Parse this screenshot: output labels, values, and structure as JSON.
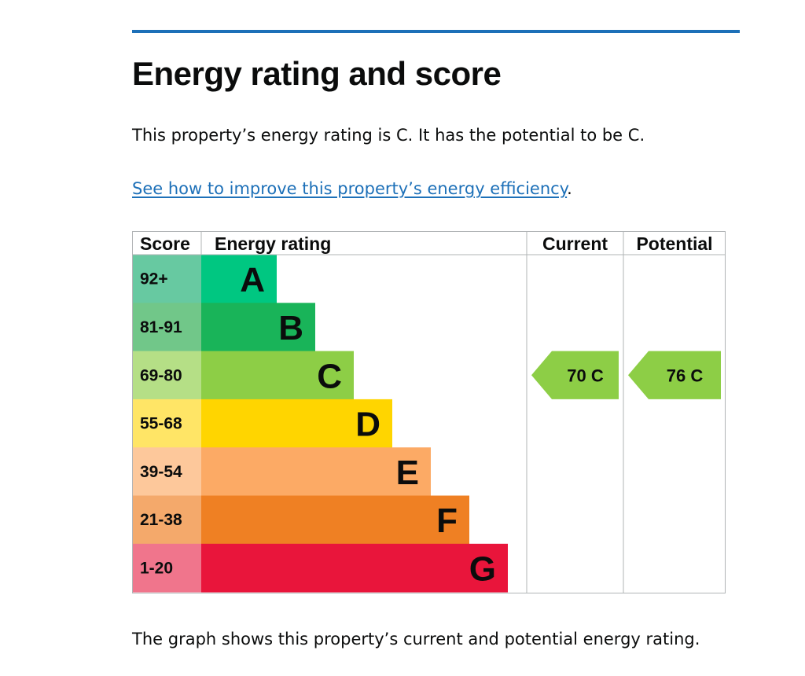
{
  "page": {
    "heading": "Energy rating and score",
    "intro": "This property’s energy rating is C. It has the potential to be C.",
    "link_text": "See how to improve this property’s energy efficiency",
    "link_suffix": ".",
    "footer": "The graph shows this property’s current and potential energy rating."
  },
  "colors": {
    "accent_line": "#1d70b8",
    "link": "#1d70b8"
  },
  "chart_data": {
    "type": "bar",
    "headers": {
      "score": "Score",
      "rating": "Energy rating",
      "current": "Current",
      "potential": "Potential"
    },
    "bands": [
      {
        "range": "92+",
        "letter": "A",
        "bar_color": "#00c781",
        "score_color": "#67c9a1"
      },
      {
        "range": "81-91",
        "letter": "B",
        "bar_color": "#19b459",
        "score_color": "#71c789"
      },
      {
        "range": "69-80",
        "letter": "C",
        "bar_color": "#8dce46",
        "score_color": "#b5df86"
      },
      {
        "range": "55-68",
        "letter": "D",
        "bar_color": "#ffd500",
        "score_color": "#ffe566"
      },
      {
        "range": "39-54",
        "letter": "E",
        "bar_color": "#fcaa65",
        "score_color": "#fdc89b"
      },
      {
        "range": "21-38",
        "letter": "F",
        "bar_color": "#ef8023",
        "score_color": "#f4a96b"
      },
      {
        "range": "1-20",
        "letter": "G",
        "bar_color": "#e9153b",
        "score_color": "#f0758c"
      }
    ],
    "current": {
      "score": 70,
      "band": "C",
      "label": "70  C"
    },
    "potential": {
      "score": 76,
      "band": "C",
      "label": "76  C"
    }
  }
}
